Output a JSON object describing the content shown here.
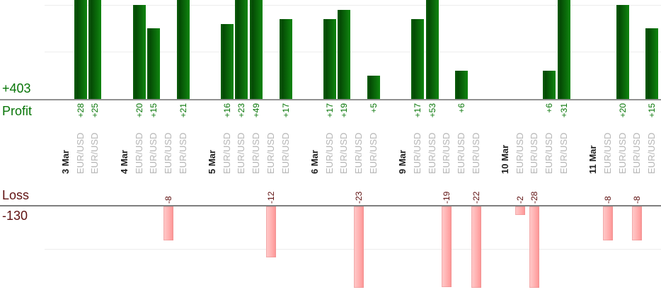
{
  "chart_data": {
    "type": "bar",
    "description": "Daily trade profit/loss bar chart, grouped by date, one bar per trade",
    "profit": {
      "axis_label": "Profit",
      "total_label": "+403",
      "total": 403,
      "gridline_step": 10,
      "grid": true
    },
    "loss": {
      "axis_label": "Loss",
      "total_label": "-130",
      "total": -130,
      "gridline_step": 10,
      "grid": true
    },
    "categories": [
      "3 Mar",
      "4 Mar",
      "5 Mar",
      "6 Mar",
      "9 Mar",
      "10 Mar",
      "11 Mar"
    ],
    "groups": [
      {
        "date": "3 Mar",
        "trades": [
          {
            "symbol": "EUR/USD",
            "value": 28,
            "label": "+28"
          },
          {
            "symbol": "EUR/USD",
            "value": 25,
            "label": "+25"
          }
        ]
      },
      {
        "date": "4 Mar",
        "trades": [
          {
            "symbol": "EUR/USD",
            "value": 20,
            "label": "+20"
          },
          {
            "symbol": "EUR/USD",
            "value": 15,
            "label": "+15"
          },
          {
            "symbol": "EUR/USD",
            "value": -8,
            "label": "-8"
          },
          {
            "symbol": "EUR/USD",
            "value": 21,
            "label": "+21"
          }
        ]
      },
      {
        "date": "5 Mar",
        "trades": [
          {
            "symbol": "EUR/USD",
            "value": 16,
            "label": "+16"
          },
          {
            "symbol": "EUR/USD",
            "value": 23,
            "label": "+23"
          },
          {
            "symbol": "EUR/USD",
            "value": 49,
            "label": "+49"
          },
          {
            "symbol": "EUR/USD",
            "value": -12,
            "label": "-12"
          },
          {
            "symbol": "EUR/USD",
            "value": 17,
            "label": "+17"
          }
        ]
      },
      {
        "date": "6 Mar",
        "trades": [
          {
            "symbol": "EUR/USD",
            "value": 17,
            "label": "+17"
          },
          {
            "symbol": "EUR/USD",
            "value": 19,
            "label": "+19"
          },
          {
            "symbol": "EUR/USD",
            "value": -23,
            "label": "-23"
          },
          {
            "symbol": "EUR/USD",
            "value": 5,
            "label": "+5"
          }
        ]
      },
      {
        "date": "9 Mar",
        "trades": [
          {
            "symbol": "EUR/USD",
            "value": 17,
            "label": "+17"
          },
          {
            "symbol": "EUR/USD",
            "value": 53,
            "label": "+53"
          },
          {
            "symbol": "EUR/USD",
            "value": -19,
            "label": "-19"
          },
          {
            "symbol": "EUR/USD",
            "value": 6,
            "label": "+6"
          },
          {
            "symbol": "EUR/USD",
            "value": -22,
            "label": "-22"
          }
        ]
      },
      {
        "date": "10 Mar",
        "trades": [
          {
            "symbol": "EUR/USD",
            "value": -2,
            "label": "-2"
          },
          {
            "symbol": "EUR/USD",
            "value": -28,
            "label": "-28"
          },
          {
            "symbol": "EUR/USD",
            "value": 6,
            "label": "+6"
          },
          {
            "symbol": "EUR/USD",
            "value": 31,
            "label": "+31"
          }
        ]
      },
      {
        "date": "11 Mar",
        "trades": [
          {
            "symbol": "EUR/USD",
            "value": -8,
            "label": "-8"
          },
          {
            "symbol": "EUR/USD",
            "value": 20,
            "label": "+20"
          },
          {
            "symbol": "EUR/USD",
            "value": -8,
            "label": "-8"
          },
          {
            "symbol": "EUR/USD",
            "value": 15,
            "label": "+15"
          }
        ]
      }
    ],
    "colors": {
      "profit_bar": "#0a6b0a",
      "loss_bar": "#ffaaaa",
      "profit_text": "#077507",
      "loss_text": "#5f1010",
      "symbol_text": "#b5b5b5",
      "date_text": "#222222",
      "gridline": "#ededed",
      "axis_line": "#8f8f8f"
    }
  }
}
